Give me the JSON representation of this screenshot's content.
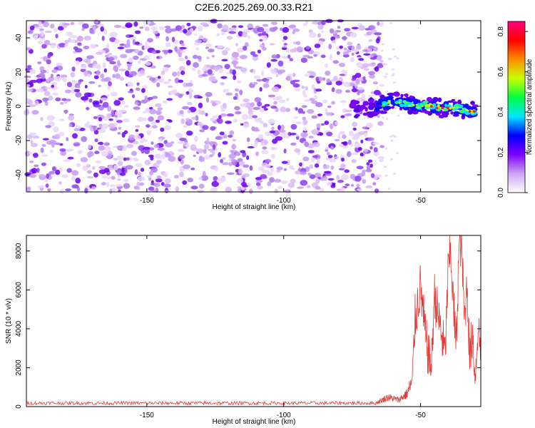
{
  "title": "C2E6.2025.269.00.33.R21",
  "chart_data": [
    {
      "type": "heatmap",
      "xlabel": "Height of straight line (km)",
      "ylabel": "Frequency (Hz)",
      "xlim": [
        -194,
        -28
      ],
      "ylim": [
        -50,
        50
      ],
      "xticks": [
        -150,
        -100,
        -50
      ],
      "yticks": [
        -40,
        -20,
        0,
        20,
        40
      ],
      "noise_region_x": [
        -194,
        -64
      ],
      "signal_band": [
        {
          "x": -76,
          "y": -2
        },
        {
          "x": -70,
          "y": -1
        },
        {
          "x": -64,
          "y": 1
        },
        {
          "x": -60,
          "y": 3
        },
        {
          "x": -56,
          "y": 2
        },
        {
          "x": -52,
          "y": 0
        },
        {
          "x": -48,
          "y": 1
        },
        {
          "x": -44,
          "y": -1
        },
        {
          "x": -40,
          "y": -1
        },
        {
          "x": -36,
          "y": -1
        },
        {
          "x": -32,
          "y": -3
        },
        {
          "x": -30,
          "y": -3
        }
      ],
      "colorbar": {
        "label": "Normalized spectral amplitude",
        "range": [
          0,
          0.85
        ],
        "ticks": [
          0.0,
          0.2,
          0.4,
          0.6,
          0.8
        ],
        "colors": [
          "#ffffff",
          "#cda4f2",
          "#7f00ff",
          "#0000ff",
          "#00e5ff",
          "#00ff40",
          "#c8ff00",
          "#ff8c00",
          "#ff0000",
          "#ff007f"
        ]
      }
    },
    {
      "type": "line",
      "xlabel": "Height of straight line (km)",
      "ylabel": "SNR (10 * v/v)",
      "xlim": [
        -194,
        -28
      ],
      "ylim": [
        0,
        8800
      ],
      "xticks": [
        -150,
        -100,
        -50
      ],
      "yticks": [
        0,
        2000,
        4000,
        6000,
        8000
      ],
      "color": "#e53935",
      "baseline": {
        "x_range": [
          -194,
          -66
        ],
        "mean": 180,
        "spread": 90
      },
      "series": [
        {
          "x": -66,
          "y": 200
        },
        {
          "x": -62,
          "y": 480
        },
        {
          "x": -58,
          "y": 350
        },
        {
          "x": -55,
          "y": 650
        },
        {
          "x": -53,
          "y": 1300
        },
        {
          "x": -52,
          "y": 4500
        },
        {
          "x": -50,
          "y": 6200
        },
        {
          "x": -48,
          "y": 3300
        },
        {
          "x": -46,
          "y": 2000
        },
        {
          "x": -45,
          "y": 5800
        },
        {
          "x": -43,
          "y": 4200
        },
        {
          "x": -41,
          "y": 2700
        },
        {
          "x": -40,
          "y": 6800
        },
        {
          "x": -39,
          "y": 8100
        },
        {
          "x": -38,
          "y": 5200
        },
        {
          "x": -37,
          "y": 3100
        },
        {
          "x": -36,
          "y": 8000
        },
        {
          "x": -35,
          "y": 8600
        },
        {
          "x": -34,
          "y": 4300
        },
        {
          "x": -33,
          "y": 6400
        },
        {
          "x": -32,
          "y": 2400
        },
        {
          "x": -31,
          "y": 3800
        },
        {
          "x": -30,
          "y": 1400
        },
        {
          "x": -29,
          "y": 4300
        },
        {
          "x": -28,
          "y": 2600
        }
      ]
    }
  ]
}
